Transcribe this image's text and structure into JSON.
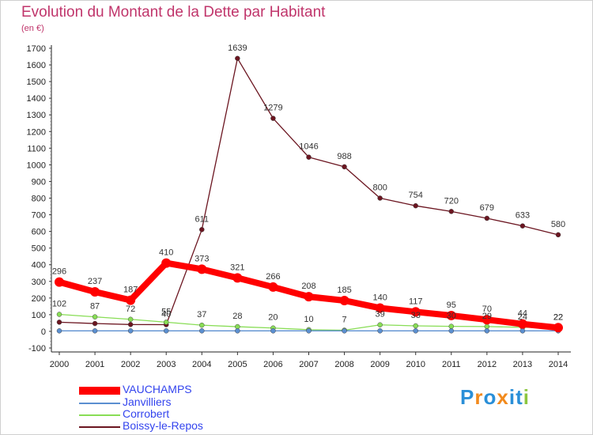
{
  "chart_data": {
    "type": "line",
    "title": "Evolution du Montant de la Dette par Habitant",
    "unit": "(en €)",
    "ylim": [
      -100,
      1700
    ],
    "y_ticks": [
      -100,
      0,
      100,
      200,
      300,
      400,
      500,
      600,
      700,
      800,
      900,
      1000,
      1100,
      1200,
      1300,
      1400,
      1500,
      1600,
      1700
    ],
    "x": [
      "2000",
      "2001",
      "2002",
      "2003",
      "2004",
      "2005",
      "2006",
      "2007",
      "2008",
      "2009",
      "2010",
      "2011",
      "2012",
      "2013",
      "2014"
    ],
    "grid": false,
    "legend_position": "bottom-left",
    "series": [
      {
        "name": "Boissy-le-Repos",
        "color": "#6b1520",
        "values": [
          55,
          47,
          41,
          40,
          611,
          1639,
          1279,
          1046,
          988,
          800,
          754,
          720,
          679,
          633,
          580
        ],
        "labels": [
          "",
          "",
          "",
          "40",
          "611",
          "1639",
          "1279",
          "1046",
          "988",
          "800",
          "754",
          "720",
          "679",
          "633",
          "580"
        ]
      },
      {
        "name": "Corrobert",
        "color": "#88dd55",
        "values": [
          102,
          87,
          72,
          55,
          37,
          28,
          20,
          10,
          7,
          39,
          33,
          30,
          29,
          24,
          22
        ],
        "labels": [
          "102",
          "87",
          "72",
          "55",
          "37",
          "28",
          "20",
          "10",
          "7",
          "39",
          "33",
          "30",
          "29",
          "24",
          "22"
        ]
      },
      {
        "name": "Janvilliers",
        "color": "#5b8fd0",
        "values": [
          3,
          3,
          3,
          3,
          3,
          3,
          3,
          3,
          3,
          3,
          3,
          3,
          3,
          3,
          3
        ],
        "labels": [
          "",
          "",
          "",
          "",
          "",
          "",
          "",
          "",
          "",
          "",
          "",
          "",
          "",
          "",
          ""
        ]
      },
      {
        "name": "VAUCHAMPS",
        "color": "#ff0000",
        "values": [
          296,
          237,
          187,
          410,
          373,
          321,
          266,
          208,
          185,
          140,
          117,
          95,
          70,
          44,
          22
        ],
        "labels": [
          "296",
          "237",
          "187",
          "410",
          "373",
          "321",
          "266",
          "208",
          "185",
          "140",
          "117",
          "95",
          "70",
          "44",
          "22"
        ]
      }
    ],
    "legend": [
      {
        "name": "VAUCHAMPS",
        "color": "#ff0000"
      },
      {
        "name": "Janvilliers",
        "color": "#5b8fd0"
      },
      {
        "name": "Corrobert",
        "color": "#88dd55"
      },
      {
        "name": "Boissy-le-Repos",
        "color": "#6b1520"
      }
    ]
  },
  "brand": {
    "text": "Proxiti",
    "letters": [
      "P",
      "r",
      "o",
      "x",
      "i",
      "t",
      "i"
    ],
    "colors": [
      "#2a8fd8",
      "#f28a1c",
      "#2a8fd8",
      "#f28a1c",
      "#2a8fd8",
      "#2a8fd8",
      "#8cc63f"
    ]
  }
}
